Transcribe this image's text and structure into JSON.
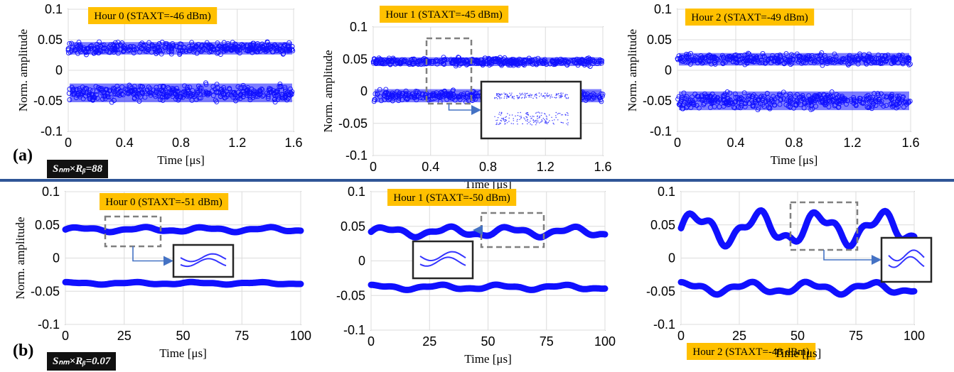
{
  "panel_labels": {
    "a": "(a)",
    "b": "(b)"
  },
  "badges": {
    "a": "Sₙₘ×Rᵦ=88",
    "b": "Sₙₘ×Rᵦ=0.07"
  },
  "colors": {
    "series": "#1010ff",
    "title_box": "#ffc000",
    "divider": "#2f5597",
    "badge": "#111111"
  },
  "chart_data": [
    {
      "type": "scatter",
      "row": "a",
      "title": "Hour 0 (STAXT=-46 dBm)",
      "xlabel": "Time [μs]",
      "ylabel": "Norm. amplitude",
      "xlim": [
        0,
        1.6
      ],
      "ylim": [
        -0.1,
        0.1
      ],
      "xticks": [
        "0",
        "0.4",
        "0.8",
        "1.2",
        "1.6"
      ],
      "yticks": [
        "-0.1",
        "-0.05",
        "0",
        "0.05",
        "0.1"
      ],
      "grid": true,
      "bands": [
        {
          "level": 0.036,
          "spread": 0.012
        },
        {
          "level": -0.037,
          "spread": 0.018
        }
      ],
      "inset": false
    },
    {
      "type": "scatter",
      "row": "a",
      "title": "Hour 1 (STAXT=-45 dBm)",
      "xlabel": "Time [μs]",
      "ylabel": "Norm. amplitude",
      "xlim": [
        0,
        1.6
      ],
      "ylim": [
        -0.1,
        0.1
      ],
      "xticks": [
        "0",
        "0.4",
        "0.8",
        "1.2",
        "1.6"
      ],
      "yticks": [
        "-0.1",
        "-0.05",
        "0",
        "0.05",
        "0.1"
      ],
      "grid": true,
      "bands": [
        {
          "level": 0.046,
          "spread": 0.008
        },
        {
          "level": -0.007,
          "spread": 0.012
        }
      ],
      "inset": true
    },
    {
      "type": "scatter",
      "row": "a",
      "title": "Hour 2 (STAXT=-49 dBm)",
      "xlabel": "Time [μs]",
      "ylabel": "Norm. amplitude",
      "xlim": [
        0,
        1.6
      ],
      "ylim": [
        -0.1,
        0.1
      ],
      "xticks": [
        "0",
        "0.4",
        "0.8",
        "1.2",
        "1.6"
      ],
      "yticks": [
        "-0.1",
        "-0.05",
        "0",
        "0.05",
        "0.1"
      ],
      "grid": true,
      "bands": [
        {
          "level": 0.018,
          "spread": 0.012
        },
        {
          "level": -0.05,
          "spread": 0.018
        }
      ],
      "inset": false
    },
    {
      "type": "line",
      "row": "b",
      "title": "Hour 0 (STAXT=-51 dBm)",
      "xlabel": "Time [μs]",
      "ylabel": "Norm. amplitude",
      "xlim": [
        0,
        100
      ],
      "ylim": [
        -0.1,
        0.1
      ],
      "xticks": [
        "0",
        "25",
        "50",
        "75",
        "100"
      ],
      "yticks": [
        "-0.1",
        "-0.05",
        "0",
        "0.05",
        "0.1"
      ],
      "grid": true,
      "bands": [
        {
          "level": 0.043,
          "amp": 0.004
        },
        {
          "level": -0.038,
          "amp": 0.002
        }
      ],
      "inset": true
    },
    {
      "type": "line",
      "row": "b",
      "title": "Hour 1 (STAXT=-50 dBm)",
      "xlabel": "Time [μs]",
      "ylabel": "",
      "xlim": [
        0,
        100
      ],
      "ylim": [
        -0.1,
        0.1
      ],
      "xticks": [
        "0",
        "25",
        "50",
        "75",
        "100"
      ],
      "yticks": [
        "-0.1",
        "-0.05",
        "0",
        "0.05",
        "0.1"
      ],
      "grid": true,
      "bands": [
        {
          "level": 0.042,
          "amp": 0.008
        },
        {
          "level": -0.038,
          "amp": 0.004
        }
      ],
      "inset": true
    },
    {
      "type": "line",
      "row": "b",
      "title": "Hour 2 (STAXT=-48 dBm)",
      "xlabel": "Time [μs]",
      "ylabel": "",
      "xlim": [
        0,
        100
      ],
      "ylim": [
        -0.1,
        0.1
      ],
      "xticks": [
        "0",
        "25",
        "50",
        "75",
        "100"
      ],
      "yticks": [
        "-0.1",
        "-0.05",
        "0",
        "0.05",
        "0.1"
      ],
      "grid": true,
      "bands": [
        {
          "level": 0.045,
          "amp": 0.028
        },
        {
          "level": -0.045,
          "amp": 0.01
        }
      ],
      "inset": true
    }
  ]
}
